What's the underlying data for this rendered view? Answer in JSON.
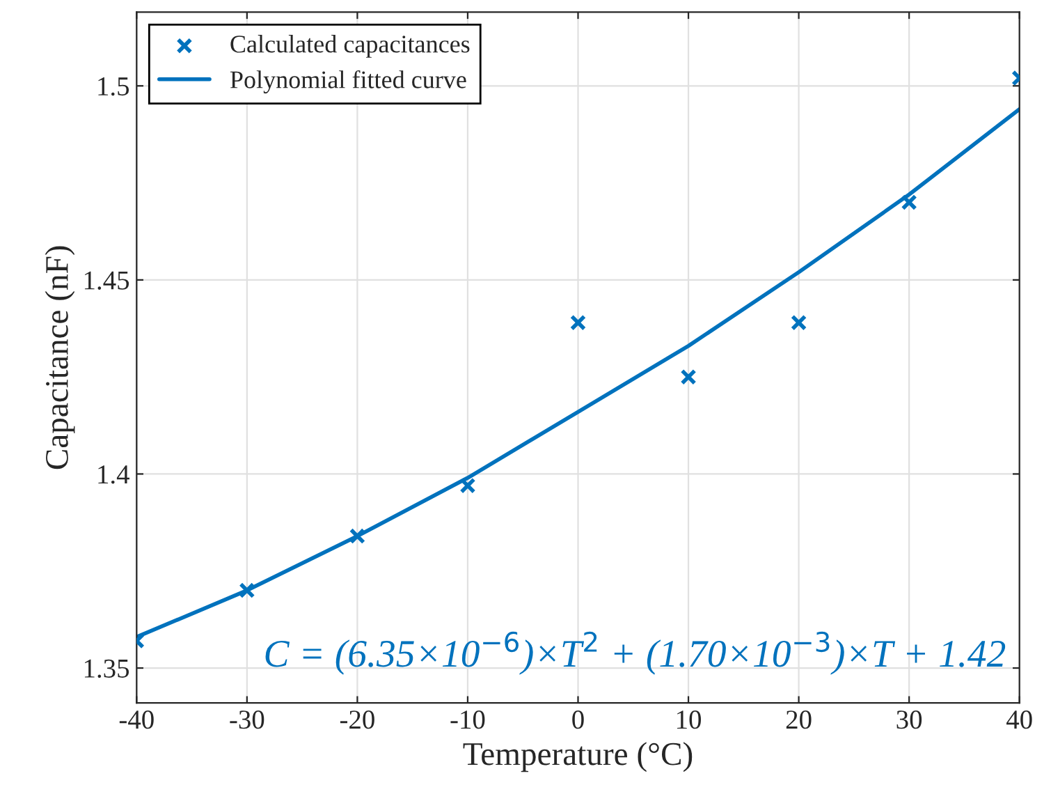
{
  "chart_data": {
    "type": "scatter",
    "xlabel": "Temperature (°C)",
    "ylabel": "Capacitance (nF)",
    "x": [
      -40,
      -30,
      -20,
      -10,
      0,
      10,
      20,
      30,
      40
    ],
    "series": [
      {
        "name": "Calculated capacitances",
        "marker": "cross",
        "color": "#0072bd",
        "values": [
          1.357,
          1.37,
          1.384,
          1.397,
          1.439,
          1.425,
          1.439,
          1.47,
          1.502
        ]
      },
      {
        "name": "Polynomial fitted curve",
        "type": "line",
        "marker": "none",
        "line_style": "solid",
        "color": "#0072bd",
        "values": [
          1.358,
          1.37,
          1.384,
          1.399,
          1.416,
          1.433,
          1.452,
          1.472,
          1.494
        ]
      }
    ],
    "annotations": [
      "C = (6.35×10$^{−6}$)×T$^{2}$ + (1.70×10$^{−3}$)×T + 1.42"
    ],
    "xlim": [
      -40,
      40
    ],
    "xticks": [
      -40,
      -30,
      -20,
      -10,
      0,
      10,
      20,
      30,
      40
    ],
    "ylim": [
      1.341,
      1.519
    ],
    "yticks": [
      1.35,
      1.4,
      1.45,
      1.5
    ],
    "grid": true,
    "legend": "top left"
  }
}
